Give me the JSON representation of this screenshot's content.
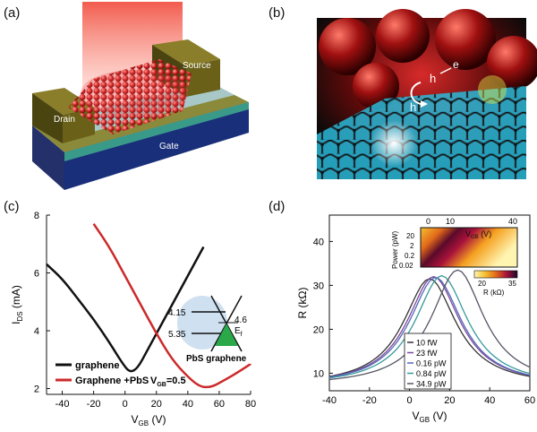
{
  "labels": {
    "a": "(a)",
    "b": "(b)",
    "c": "(c)",
    "d": "(d)"
  },
  "panel_a": {
    "drain": "Drain",
    "source": "Source",
    "gate": "Gate"
  },
  "panel_b": {
    "hole1": "h",
    "electron_h": "h",
    "electron_e": "e"
  },
  "chart_data": [
    {
      "type": "line",
      "panel": "c",
      "xlabel_main": "V",
      "xlabel_sub": "GB",
      "xlabel_unit": " (V)",
      "ylabel_main": "I",
      "ylabel_sub": "DS",
      "ylabel_unit": " (mA)",
      "xlim": [
        -50,
        80
      ],
      "ylim": [
        1.8,
        8
      ],
      "xticks": [
        -40,
        -20,
        0,
        20,
        40,
        60,
        80
      ],
      "yticks": [
        2,
        4,
        6,
        8
      ],
      "series": [
        {
          "name": "graphene",
          "color": "#111111",
          "x": [
            -50,
            -40,
            -30,
            -20,
            -10,
            -2,
            3,
            8,
            14,
            20,
            30,
            40,
            50
          ],
          "y": [
            6.3,
            5.8,
            5.1,
            4.4,
            3.6,
            2.9,
            2.55,
            2.7,
            3.3,
            3.9,
            4.9,
            5.9,
            6.9
          ]
        },
        {
          "name": "Graphene +PbS",
          "color": "#cc2a2a",
          "x": [
            -20,
            -10,
            0,
            10,
            20,
            30,
            40,
            48,
            55,
            62,
            70,
            80
          ],
          "y": [
            7.7,
            6.9,
            5.9,
            4.9,
            3.9,
            3.0,
            2.4,
            2.05,
            2.05,
            2.25,
            2.5,
            2.85
          ]
        }
      ],
      "legend_extra": "V",
      "legend_extra_sub": "GB",
      "legend_extra_value": "=0.5",
      "inset": {
        "e1": "4.15",
        "e2": "5.35",
        "e3": "4.6",
        "ef": "E",
        "ef_sub": "f",
        "caption": "PbS graphene"
      }
    },
    {
      "type": "line",
      "panel": "d",
      "xlabel_main": "V",
      "xlabel_sub": "GB",
      "xlabel_unit": " (V)",
      "ylabel": "R (kΩ)",
      "xlim": [
        -40,
        60
      ],
      "ylim": [
        6,
        46
      ],
      "xticks": [
        -40,
        -20,
        0,
        20,
        40,
        60
      ],
      "yticks": [
        10,
        20,
        30,
        40
      ],
      "series": [
        {
          "name": "10 fW",
          "color": "#333333",
          "peak_x": 10,
          "peak_y": 31.5
        },
        {
          "name": "23 fW",
          "color": "#7a4a9a",
          "peak_x": 12,
          "peak_y": 32
        },
        {
          "name": "0.16 pW",
          "color": "#5566bb",
          "peak_x": 13,
          "peak_y": 31.8
        },
        {
          "name": "0.84 pW",
          "color": "#3a9a9a",
          "peak_x": 16,
          "peak_y": 32.2
        },
        {
          "name": "34.9 pW",
          "color": "#555566",
          "peak_x": 24,
          "peak_y": 33.5
        }
      ],
      "inset": {
        "xlabel": "V",
        "xlabel_sub": "GB",
        "xlabel_unit": " (V)",
        "xticks": [
          "0",
          "10",
          "40"
        ],
        "ylabel": "Power (pW)",
        "yticks": [
          "20",
          "2",
          "0.2",
          "0.02"
        ],
        "colorbar_ticks": [
          "20",
          "35"
        ],
        "colorbar_label": "R (kΩ)"
      }
    }
  ]
}
